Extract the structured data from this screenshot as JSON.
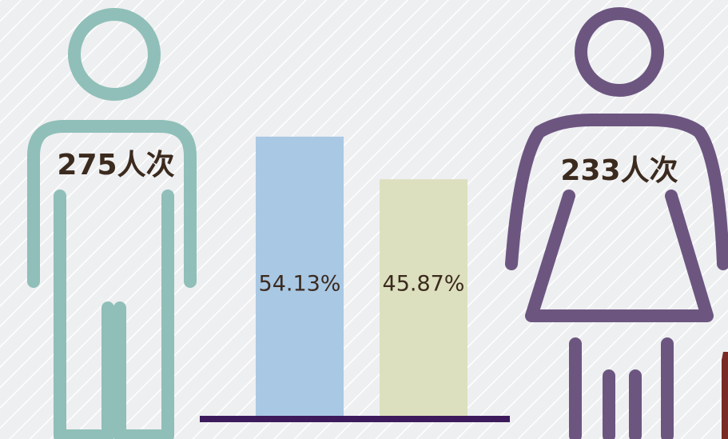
{
  "chart_data": {
    "type": "bar",
    "categories": [
      null,
      null
    ],
    "values": [
      54.13,
      45.87
    ],
    "value_labels": [
      "54.13%",
      "45.87%"
    ],
    "colors": [
      "#a9c8e4",
      "#dde0bf"
    ],
    "annotations": [
      "275人次",
      "233人次"
    ]
  }
}
